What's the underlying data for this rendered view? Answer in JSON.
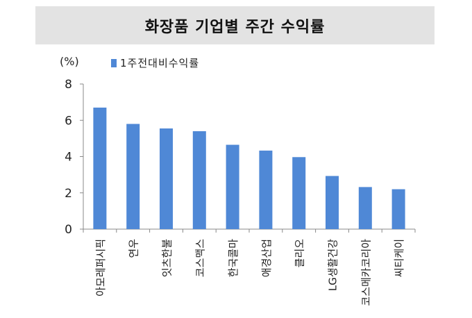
{
  "title": "화장품 기업별 주간 수익률",
  "unit_label": "(%)",
  "colors": {
    "bar": "#4f88d6",
    "axis": "#888888",
    "title_bg": "#e3e3e3"
  },
  "chart_data": {
    "type": "bar",
    "title": "화장품 기업별 주간 수익률",
    "xlabel": "",
    "ylabel": "(%)",
    "categories": [
      "아모레퍼시픽",
      "연우",
      "잇츠한불",
      "코스맥스",
      "한국콜마",
      "애경산업",
      "클리오",
      "LG생활건강",
      "코스메카코리아",
      "씨티케이"
    ],
    "series": [
      {
        "name": "1주전대비수익률",
        "values": [
          6.7,
          5.8,
          5.55,
          5.4,
          4.65,
          4.33,
          3.97,
          2.93,
          2.32,
          2.2
        ]
      }
    ],
    "ylim": [
      0,
      8
    ],
    "yticks": [
      0,
      2,
      4,
      6,
      8
    ],
    "grid": false,
    "legend_position": "top-left"
  }
}
